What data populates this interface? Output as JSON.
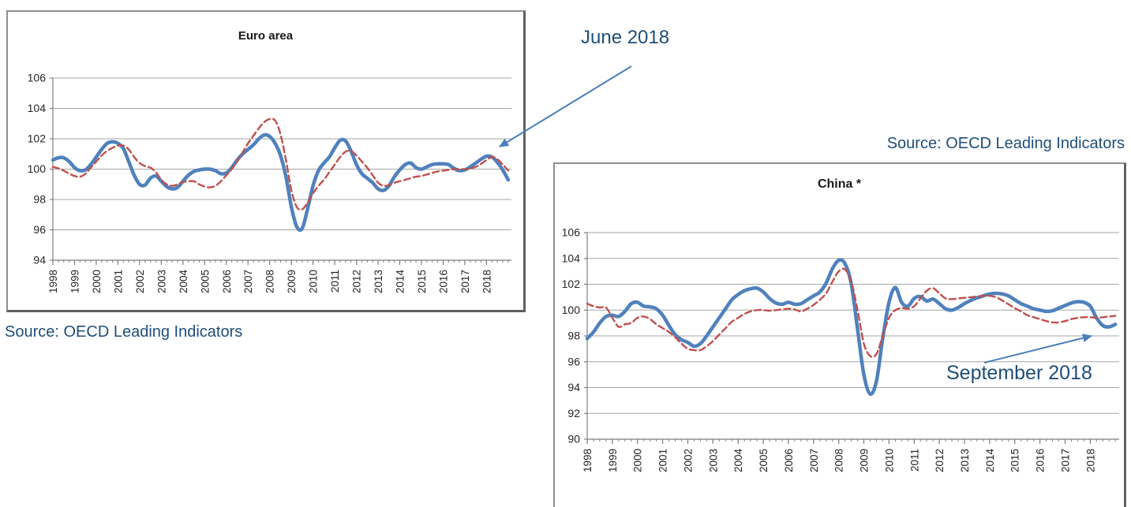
{
  "annotations": {
    "june_2018": "June 2018",
    "september_2018": "September 2018",
    "source_left": "Source: OECD Leading Indicators",
    "source_right": "Source: OECD Leading Indicators"
  },
  "colors": {
    "solid_line": "#4F81BD",
    "dashed_line": "#C0504D",
    "annotation_text": "#1F4E79",
    "arrow": "#4A7EBB",
    "gridline": "#A6A6A6",
    "axis": "#7F7F7F"
  },
  "chart_data": [
    {
      "id": "euro",
      "type": "line",
      "title": "Euro area",
      "xlim": [
        1998,
        2019.15
      ],
      "ylim": [
        94,
        106
      ],
      "yticks": [
        94,
        96,
        98,
        100,
        102,
        104,
        106
      ],
      "xticks": [
        1998,
        1999,
        2000,
        2001,
        2002,
        2003,
        2004,
        2005,
        2006,
        2007,
        2008,
        2009,
        2010,
        2011,
        2012,
        2013,
        2014,
        2015,
        2016,
        2017,
        2018
      ],
      "minor_tick_step": 0.25,
      "grid": true,
      "legend": "none",
      "x_start": 1998,
      "x_step": 0.25,
      "annotation": "June 2018",
      "series": [
        {
          "name": "leading-indicator-solid",
          "style": "solid",
          "color": "#4F81BD",
          "values": [
            100.6,
            100.75,
            100.75,
            100.5,
            100.1,
            99.9,
            99.95,
            100.3,
            100.8,
            101.3,
            101.7,
            101.8,
            101.7,
            101.35,
            100.5,
            99.6,
            99.0,
            98.95,
            99.4,
            99.55,
            99.2,
            98.85,
            98.7,
            98.8,
            99.2,
            99.6,
            99.85,
            99.95,
            100.0,
            100.0,
            99.9,
            99.7,
            99.75,
            100.1,
            100.6,
            101.0,
            101.3,
            101.6,
            102.0,
            102.25,
            102.15,
            101.7,
            100.9,
            99.5,
            97.5,
            96.2,
            96.1,
            97.4,
            98.9,
            99.9,
            100.4,
            100.8,
            101.4,
            101.9,
            101.85,
            101.2,
            100.3,
            99.7,
            99.4,
            99.1,
            98.7,
            98.6,
            98.9,
            99.5,
            99.95,
            100.3,
            100.4,
            100.1,
            100.0,
            100.15,
            100.3,
            100.35,
            100.35,
            100.3,
            100.05,
            99.9,
            99.95,
            100.15,
            100.4,
            100.65,
            100.85,
            100.8,
            100.45,
            99.95,
            99.3
          ]
        },
        {
          "name": "reference-dashed",
          "style": "dashed",
          "color": "#C0504D",
          "values": [
            100.15,
            100.05,
            99.9,
            99.7,
            99.55,
            99.5,
            99.7,
            100.1,
            100.5,
            100.9,
            101.2,
            101.4,
            101.55,
            101.55,
            101.3,
            100.8,
            100.4,
            100.2,
            100.1,
            99.8,
            99.3,
            99.0,
            98.9,
            99.0,
            99.15,
            99.2,
            99.2,
            99.0,
            98.85,
            98.8,
            98.9,
            99.2,
            99.6,
            100.0,
            100.5,
            101.1,
            101.7,
            102.2,
            102.7,
            103.1,
            103.3,
            103.2,
            102.3,
            100.6,
            98.6,
            97.5,
            97.35,
            97.8,
            98.4,
            98.9,
            99.3,
            99.8,
            100.3,
            100.8,
            101.15,
            101.2,
            100.9,
            100.5,
            100.1,
            99.6,
            99.1,
            98.9,
            98.95,
            99.1,
            99.2,
            99.3,
            99.4,
            99.5,
            99.55,
            99.65,
            99.75,
            99.85,
            99.9,
            99.95,
            100.0,
            100.0,
            100.0,
            100.05,
            100.15,
            100.35,
            100.6,
            100.8,
            100.65,
            100.3,
            99.9
          ]
        }
      ]
    },
    {
      "id": "china",
      "type": "line",
      "title": "China *",
      "xlim": [
        1998,
        2019.15
      ],
      "ylim": [
        90,
        106
      ],
      "yticks": [
        90,
        92,
        94,
        96,
        98,
        100,
        102,
        104,
        106
      ],
      "xticks": [
        1998,
        1999,
        2000,
        2001,
        2002,
        2003,
        2004,
        2005,
        2006,
        2007,
        2008,
        2009,
        2010,
        2011,
        2012,
        2013,
        2014,
        2015,
        2016,
        2017,
        2018
      ],
      "minor_tick_step": 0.25,
      "grid": true,
      "legend": "none",
      "x_start": 1998,
      "x_step": 0.25,
      "annotation": "September 2018",
      "series": [
        {
          "name": "leading-indicator-solid",
          "style": "solid",
          "color": "#4F81BD",
          "values": [
            97.8,
            98.3,
            99.0,
            99.5,
            99.6,
            99.5,
            99.9,
            100.5,
            100.6,
            100.3,
            100.25,
            100.1,
            99.6,
            98.8,
            98.1,
            97.7,
            97.5,
            97.2,
            97.4,
            98.0,
            98.7,
            99.4,
            100.1,
            100.8,
            101.2,
            101.5,
            101.65,
            101.7,
            101.4,
            100.9,
            100.55,
            100.45,
            100.6,
            100.45,
            100.5,
            100.8,
            101.1,
            101.4,
            102.1,
            103.2,
            103.85,
            103.6,
            102.0,
            98.5,
            95.0,
            93.5,
            94.5,
            97.8,
            100.6,
            101.75,
            100.6,
            100.3,
            100.9,
            101.05,
            100.7,
            100.85,
            100.5,
            100.1,
            100.0,
            100.2,
            100.5,
            100.75,
            100.95,
            101.1,
            101.25,
            101.3,
            101.25,
            101.1,
            100.8,
            100.5,
            100.3,
            100.1,
            100.0,
            99.9,
            99.95,
            100.15,
            100.35,
            100.55,
            100.65,
            100.6,
            100.3,
            99.4,
            98.8,
            98.7,
            98.9
          ]
        },
        {
          "name": "reference-dashed",
          "style": "dashed",
          "color": "#C0504D",
          "values": [
            100.5,
            100.3,
            100.2,
            100.2,
            99.4,
            98.7,
            98.9,
            99.0,
            99.4,
            99.5,
            99.3,
            98.9,
            98.6,
            98.3,
            97.9,
            97.4,
            97.0,
            96.9,
            96.9,
            97.2,
            97.6,
            98.1,
            98.6,
            99.1,
            99.4,
            99.7,
            99.9,
            100.0,
            100.0,
            99.95,
            100.0,
            100.05,
            100.1,
            100.05,
            99.9,
            100.1,
            100.4,
            100.8,
            101.3,
            102.2,
            103.0,
            103.15,
            102.2,
            100.0,
            97.4,
            96.45,
            96.6,
            98.0,
            99.4,
            100.0,
            100.15,
            100.1,
            100.3,
            100.9,
            101.5,
            101.7,
            101.3,
            100.9,
            100.85,
            100.9,
            100.95,
            101.0,
            101.05,
            101.1,
            101.1,
            101.0,
            100.75,
            100.45,
            100.15,
            99.9,
            99.6,
            99.45,
            99.3,
            99.15,
            99.05,
            99.05,
            99.15,
            99.3,
            99.4,
            99.45,
            99.45,
            99.4,
            99.45,
            99.5,
            99.55
          ]
        }
      ]
    }
  ]
}
